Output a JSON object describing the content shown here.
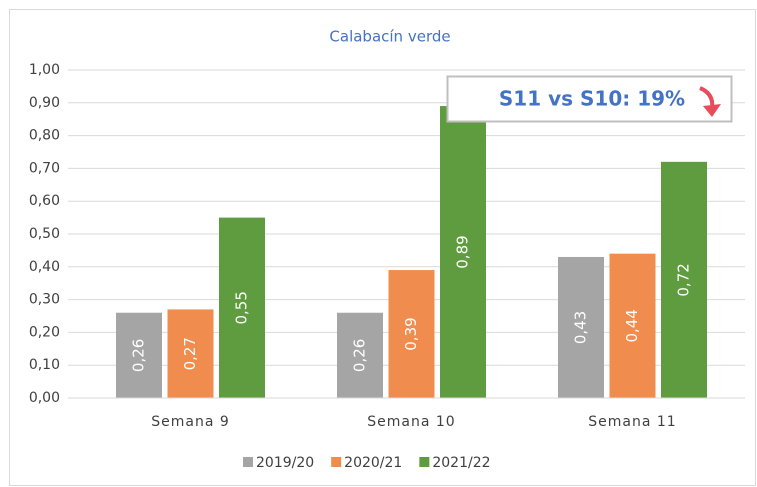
{
  "chart_data": {
    "type": "bar",
    "title": "Calabacín verde",
    "categories": [
      "Semana 9",
      "Semana 10",
      "Semana 11"
    ],
    "series": [
      {
        "name": "2019/20",
        "color": "#a5a5a5",
        "values": [
          0.26,
          0.26,
          0.43
        ],
        "value_labels": [
          "0,26",
          "0,26",
          "0,43"
        ]
      },
      {
        "name": "2020/21",
        "color": "#f08c4e",
        "values": [
          0.27,
          0.39,
          0.44
        ],
        "value_labels": [
          "0,27",
          "0,39",
          "0,44"
        ]
      },
      {
        "name": "2021/22",
        "color": "#5f9b3f",
        "values": [
          0.55,
          0.89,
          0.72
        ],
        "value_labels": [
          "0,55",
          "0,89",
          "0,72"
        ]
      }
    ],
    "ylim": [
      0,
      1
    ],
    "yticks": [
      {
        "value": 0,
        "label": "0,00"
      },
      {
        "value": 0.1,
        "label": "0,10"
      },
      {
        "value": 0.2,
        "label": "0,20"
      },
      {
        "value": 0.3,
        "label": "0,30"
      },
      {
        "value": 0.4,
        "label": "0,40"
      },
      {
        "value": 0.5,
        "label": "0,50"
      },
      {
        "value": 0.6,
        "label": "0,60"
      },
      {
        "value": 0.7,
        "label": "0,70"
      },
      {
        "value": 0.8,
        "label": "0,80"
      },
      {
        "value": 0.9,
        "label": "0,90"
      },
      {
        "value": 1,
        "label": "1,00"
      }
    ],
    "grid": true,
    "legend": "bottom",
    "annotation": "S11 vs S10: 19%"
  }
}
